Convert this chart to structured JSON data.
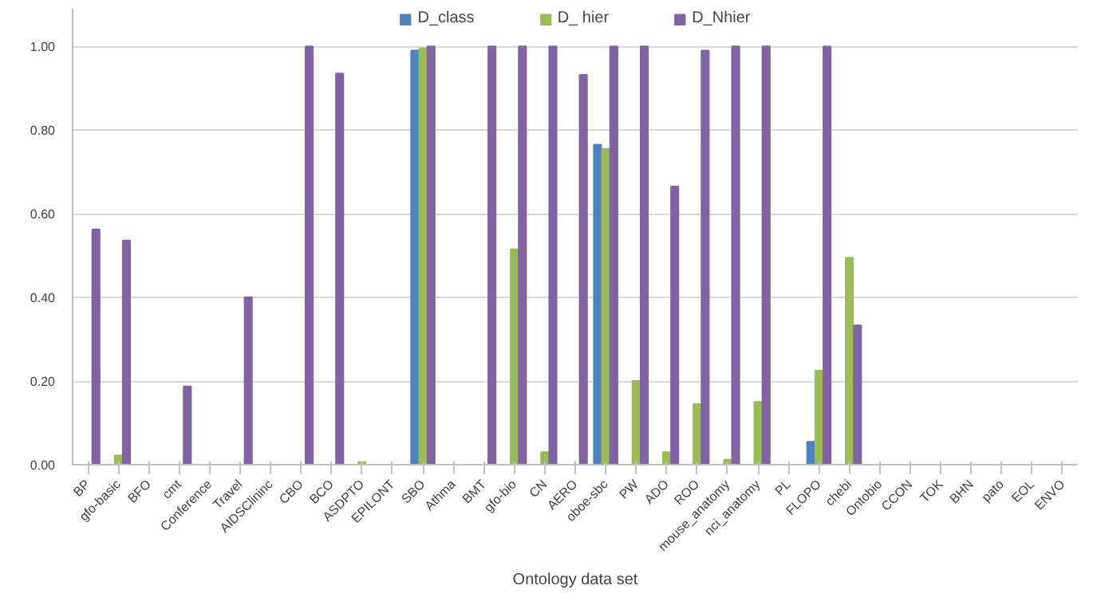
{
  "chart_data": {
    "type": "bar",
    "xlabel": "Ontology data set",
    "categories": [
      "BP",
      "gfo-basic",
      "BFO",
      "cmt",
      "Conference",
      "Travel",
      "AIDSClininc",
      "CBO",
      "BCO",
      "ASDPTO",
      "EPILONT",
      "SBO",
      "Athma",
      "BMT",
      "gfo-bio",
      "CN",
      "AERO",
      "oboe-sbc",
      "PW",
      "ADO",
      "ROO",
      "mouse_anatomy",
      "nci_anatomy",
      "PL",
      "FLOPO",
      "chebi",
      "Ontobio",
      "CCON",
      "TOK",
      "BHN",
      "pato",
      "EOL",
      "ENVO"
    ],
    "series": [
      {
        "name": "D_class",
        "color": "#4f81bd",
        "values": [
          0,
          0,
          0,
          0,
          0,
          0,
          0,
          0,
          0,
          0,
          0,
          0.99,
          0,
          0,
          0,
          0,
          0,
          0.765,
          0,
          0,
          0,
          0,
          0,
          0,
          0.055,
          0,
          0,
          0,
          0,
          0,
          0,
          0,
          0
        ]
      },
      {
        "name": "D_ hier",
        "color": "#9bbb59",
        "values": [
          0,
          0.022,
          0,
          0,
          0,
          0,
          0,
          0,
          0,
          0.006,
          0,
          0.995,
          0,
          0,
          0.515,
          0.03,
          0,
          0.755,
          0.2,
          0.03,
          0.145,
          0.012,
          0.15,
          0,
          0.225,
          0.495,
          0,
          0,
          0,
          0,
          0,
          0,
          0
        ]
      },
      {
        "name": "D_Nhier",
        "color": "#8064a2",
        "values": [
          0.562,
          0.536,
          0,
          0.187,
          0,
          0.4,
          0,
          1.0,
          0.935,
          0,
          0,
          1.0,
          0,
          1.0,
          1.0,
          1.0,
          0.932,
          1.0,
          1.0,
          0.665,
          0.99,
          1.0,
          1.0,
          0,
          1.0,
          0.333,
          0,
          0,
          0,
          0,
          0,
          0,
          0
        ]
      }
    ],
    "ylim": [
      0,
      1.09
    ],
    "yticks": [
      {
        "value": 0,
        "label": "0.00"
      },
      {
        "value": 0.2,
        "label": "0.20"
      },
      {
        "value": 0.4,
        "label": "0.40"
      },
      {
        "value": 0.6,
        "label": "0.60"
      },
      {
        "value": 0.8,
        "label": "0.80"
      },
      {
        "value": 1.0,
        "label": "1.00"
      }
    ],
    "grid": "y",
    "legend": "top"
  }
}
